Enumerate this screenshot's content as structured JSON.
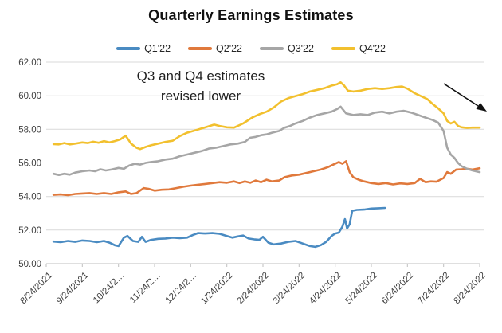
{
  "title": "Quarterly Earnings Estimates",
  "annotation": {
    "line1": "Q3 and Q4 estimates",
    "line2": "revised lower",
    "arrow_direction": "down-right"
  },
  "chart_data": {
    "type": "line",
    "title": "Quarterly Earnings Estimates",
    "xlabel": "",
    "ylabel": "",
    "x_axis": {
      "unit": "months since 8/24/2021",
      "range": [
        0,
        12
      ],
      "tick_labels": [
        "8/24/2021",
        "9/24/2021",
        "10/24/2…",
        "11/24/2…",
        "12/24/2…",
        "1/24/2022",
        "2/24/2022",
        "3/24/2022",
        "4/24/2022",
        "5/24/2022",
        "6/24/2022",
        "7/24/2022",
        "8/24/2022"
      ]
    },
    "y_axis": {
      "range": [
        50,
        62
      ],
      "tick_labels": [
        "62.00",
        "60.00",
        "58.00",
        "56.00",
        "54.00",
        "52.00",
        "50.00"
      ],
      "gridlines": true
    },
    "legend_position": "top",
    "colors": {
      "grid": "#D9D9D9",
      "axis": "#BFBFBF",
      "tick_text": "#404040",
      "annotation_arrow": "#111111"
    },
    "series": [
      {
        "name": "Q1'22",
        "color": "#4A8BC2",
        "points": [
          [
            0.2,
            51.32
          ],
          [
            0.4,
            51.28
          ],
          [
            0.6,
            51.35
          ],
          [
            0.8,
            51.3
          ],
          [
            1.0,
            51.38
          ],
          [
            1.2,
            51.35
          ],
          [
            1.4,
            51.28
          ],
          [
            1.6,
            51.35
          ],
          [
            1.75,
            51.25
          ],
          [
            1.9,
            51.1
          ],
          [
            2.0,
            51.05
          ],
          [
            2.15,
            51.55
          ],
          [
            2.25,
            51.65
          ],
          [
            2.4,
            51.35
          ],
          [
            2.55,
            51.3
          ],
          [
            2.65,
            51.6
          ],
          [
            2.75,
            51.3
          ],
          [
            2.9,
            51.42
          ],
          [
            3.1,
            51.48
          ],
          [
            3.3,
            51.5
          ],
          [
            3.5,
            51.55
          ],
          [
            3.7,
            51.52
          ],
          [
            3.9,
            51.55
          ],
          [
            4.05,
            51.7
          ],
          [
            4.2,
            51.82
          ],
          [
            4.4,
            51.8
          ],
          [
            4.6,
            51.82
          ],
          [
            4.8,
            51.78
          ],
          [
            5.0,
            51.65
          ],
          [
            5.15,
            51.55
          ],
          [
            5.3,
            51.62
          ],
          [
            5.45,
            51.68
          ],
          [
            5.6,
            51.5
          ],
          [
            5.75,
            51.45
          ],
          [
            5.9,
            51.42
          ],
          [
            6.0,
            51.6
          ],
          [
            6.15,
            51.25
          ],
          [
            6.3,
            51.15
          ],
          [
            6.5,
            51.2
          ],
          [
            6.7,
            51.3
          ],
          [
            6.9,
            51.35
          ],
          [
            7.1,
            51.2
          ],
          [
            7.3,
            51.05
          ],
          [
            7.45,
            51.0
          ],
          [
            7.6,
            51.1
          ],
          [
            7.75,
            51.3
          ],
          [
            7.9,
            51.65
          ],
          [
            8.0,
            51.8
          ],
          [
            8.1,
            51.85
          ],
          [
            8.2,
            52.2
          ],
          [
            8.27,
            52.65
          ],
          [
            8.33,
            52.1
          ],
          [
            8.4,
            52.35
          ],
          [
            8.47,
            53.15
          ],
          [
            8.6,
            53.2
          ],
          [
            8.8,
            53.22
          ],
          [
            9.0,
            53.28
          ],
          [
            9.2,
            53.3
          ],
          [
            9.38,
            53.32
          ]
        ]
      },
      {
        "name": "Q2'22",
        "color": "#E0793C",
        "points": [
          [
            0.2,
            54.1
          ],
          [
            0.4,
            54.12
          ],
          [
            0.6,
            54.08
          ],
          [
            0.8,
            54.15
          ],
          [
            1.0,
            54.18
          ],
          [
            1.2,
            54.2
          ],
          [
            1.4,
            54.15
          ],
          [
            1.6,
            54.2
          ],
          [
            1.8,
            54.15
          ],
          [
            2.0,
            54.25
          ],
          [
            2.2,
            54.3
          ],
          [
            2.35,
            54.15
          ],
          [
            2.5,
            54.2
          ],
          [
            2.7,
            54.5
          ],
          [
            2.85,
            54.45
          ],
          [
            3.0,
            54.35
          ],
          [
            3.2,
            54.4
          ],
          [
            3.4,
            54.42
          ],
          [
            3.6,
            54.5
          ],
          [
            3.8,
            54.58
          ],
          [
            4.0,
            54.65
          ],
          [
            4.2,
            54.7
          ],
          [
            4.4,
            54.75
          ],
          [
            4.6,
            54.8
          ],
          [
            4.8,
            54.85
          ],
          [
            5.0,
            54.82
          ],
          [
            5.2,
            54.9
          ],
          [
            5.35,
            54.8
          ],
          [
            5.5,
            54.9
          ],
          [
            5.65,
            54.82
          ],
          [
            5.8,
            54.95
          ],
          [
            5.95,
            54.85
          ],
          [
            6.1,
            55.0
          ],
          [
            6.25,
            54.9
          ],
          [
            6.45,
            54.95
          ],
          [
            6.6,
            55.15
          ],
          [
            6.8,
            55.25
          ],
          [
            7.0,
            55.3
          ],
          [
            7.2,
            55.4
          ],
          [
            7.4,
            55.5
          ],
          [
            7.6,
            55.6
          ],
          [
            7.8,
            55.75
          ],
          [
            7.95,
            55.9
          ],
          [
            8.1,
            56.05
          ],
          [
            8.2,
            55.95
          ],
          [
            8.3,
            56.1
          ],
          [
            8.4,
            55.45
          ],
          [
            8.5,
            55.15
          ],
          [
            8.65,
            55.0
          ],
          [
            8.8,
            54.9
          ],
          [
            9.0,
            54.8
          ],
          [
            9.2,
            54.75
          ],
          [
            9.4,
            54.8
          ],
          [
            9.6,
            54.72
          ],
          [
            9.8,
            54.78
          ],
          [
            10.0,
            54.75
          ],
          [
            10.2,
            54.8
          ],
          [
            10.35,
            55.05
          ],
          [
            10.5,
            54.85
          ],
          [
            10.65,
            54.9
          ],
          [
            10.8,
            54.88
          ],
          [
            11.0,
            55.1
          ],
          [
            11.1,
            55.45
          ],
          [
            11.2,
            55.35
          ],
          [
            11.35,
            55.6
          ],
          [
            11.5,
            55.62
          ],
          [
            11.65,
            55.65
          ],
          [
            11.8,
            55.6
          ],
          [
            12.0,
            55.68
          ]
        ]
      },
      {
        "name": "Q3'22",
        "color": "#A6A6A6",
        "points": [
          [
            0.2,
            55.35
          ],
          [
            0.35,
            55.28
          ],
          [
            0.5,
            55.35
          ],
          [
            0.65,
            55.3
          ],
          [
            0.8,
            55.42
          ],
          [
            1.0,
            55.5
          ],
          [
            1.2,
            55.55
          ],
          [
            1.35,
            55.5
          ],
          [
            1.5,
            55.62
          ],
          [
            1.65,
            55.55
          ],
          [
            1.8,
            55.6
          ],
          [
            2.0,
            55.7
          ],
          [
            2.15,
            55.65
          ],
          [
            2.3,
            55.85
          ],
          [
            2.45,
            55.95
          ],
          [
            2.6,
            55.9
          ],
          [
            2.75,
            56.0
          ],
          [
            2.9,
            56.05
          ],
          [
            3.1,
            56.1
          ],
          [
            3.3,
            56.2
          ],
          [
            3.5,
            56.25
          ],
          [
            3.7,
            56.4
          ],
          [
            3.9,
            56.5
          ],
          [
            4.1,
            56.6
          ],
          [
            4.3,
            56.7
          ],
          [
            4.5,
            56.85
          ],
          [
            4.7,
            56.9
          ],
          [
            4.9,
            57.0
          ],
          [
            5.1,
            57.1
          ],
          [
            5.3,
            57.15
          ],
          [
            5.5,
            57.25
          ],
          [
            5.65,
            57.5
          ],
          [
            5.8,
            57.55
          ],
          [
            5.95,
            57.65
          ],
          [
            6.1,
            57.7
          ],
          [
            6.25,
            57.8
          ],
          [
            6.45,
            57.9
          ],
          [
            6.6,
            58.1
          ],
          [
            6.75,
            58.2
          ],
          [
            6.9,
            58.35
          ],
          [
            7.1,
            58.5
          ],
          [
            7.3,
            58.7
          ],
          [
            7.5,
            58.85
          ],
          [
            7.7,
            58.95
          ],
          [
            7.9,
            59.05
          ],
          [
            8.05,
            59.2
          ],
          [
            8.15,
            59.35
          ],
          [
            8.3,
            58.95
          ],
          [
            8.5,
            58.85
          ],
          [
            8.7,
            58.9
          ],
          [
            8.9,
            58.85
          ],
          [
            9.1,
            59.0
          ],
          [
            9.3,
            59.05
          ],
          [
            9.5,
            58.95
          ],
          [
            9.7,
            59.05
          ],
          [
            9.9,
            59.1
          ],
          [
            10.1,
            59.0
          ],
          [
            10.3,
            58.85
          ],
          [
            10.5,
            58.7
          ],
          [
            10.7,
            58.55
          ],
          [
            10.85,
            58.4
          ],
          [
            11.0,
            57.9
          ],
          [
            11.1,
            56.9
          ],
          [
            11.2,
            56.5
          ],
          [
            11.3,
            56.3
          ],
          [
            11.4,
            56.0
          ],
          [
            11.5,
            55.8
          ],
          [
            11.65,
            55.65
          ],
          [
            11.8,
            55.55
          ],
          [
            12.0,
            55.45
          ]
        ]
      },
      {
        "name": "Q4'22",
        "color": "#F2C02E",
        "points": [
          [
            0.2,
            57.12
          ],
          [
            0.35,
            57.1
          ],
          [
            0.5,
            57.18
          ],
          [
            0.65,
            57.1
          ],
          [
            0.8,
            57.15
          ],
          [
            1.0,
            57.22
          ],
          [
            1.15,
            57.18
          ],
          [
            1.3,
            57.26
          ],
          [
            1.45,
            57.2
          ],
          [
            1.6,
            57.3
          ],
          [
            1.75,
            57.22
          ],
          [
            1.9,
            57.3
          ],
          [
            2.05,
            57.4
          ],
          [
            2.2,
            57.62
          ],
          [
            2.35,
            57.15
          ],
          [
            2.5,
            56.9
          ],
          [
            2.6,
            56.82
          ],
          [
            2.75,
            56.95
          ],
          [
            2.9,
            57.05
          ],
          [
            3.1,
            57.15
          ],
          [
            3.3,
            57.25
          ],
          [
            3.5,
            57.32
          ],
          [
            3.7,
            57.6
          ],
          [
            3.9,
            57.8
          ],
          [
            4.1,
            57.92
          ],
          [
            4.3,
            58.05
          ],
          [
            4.5,
            58.18
          ],
          [
            4.65,
            58.28
          ],
          [
            4.8,
            58.2
          ],
          [
            5.0,
            58.12
          ],
          [
            5.2,
            58.1
          ],
          [
            5.45,
            58.35
          ],
          [
            5.7,
            58.7
          ],
          [
            5.9,
            58.9
          ],
          [
            6.1,
            59.05
          ],
          [
            6.3,
            59.3
          ],
          [
            6.5,
            59.65
          ],
          [
            6.7,
            59.85
          ],
          [
            6.9,
            59.98
          ],
          [
            7.1,
            60.1
          ],
          [
            7.3,
            60.25
          ],
          [
            7.5,
            60.35
          ],
          [
            7.7,
            60.45
          ],
          [
            7.9,
            60.6
          ],
          [
            8.05,
            60.68
          ],
          [
            8.15,
            60.8
          ],
          [
            8.25,
            60.6
          ],
          [
            8.35,
            60.3
          ],
          [
            8.5,
            60.25
          ],
          [
            8.7,
            60.3
          ],
          [
            8.9,
            60.4
          ],
          [
            9.1,
            60.45
          ],
          [
            9.3,
            60.4
          ],
          [
            9.5,
            60.45
          ],
          [
            9.7,
            60.52
          ],
          [
            9.85,
            60.55
          ],
          [
            10.0,
            60.42
          ],
          [
            10.2,
            60.15
          ],
          [
            10.4,
            59.95
          ],
          [
            10.55,
            59.8
          ],
          [
            10.7,
            59.5
          ],
          [
            10.85,
            59.25
          ],
          [
            11.0,
            58.95
          ],
          [
            11.1,
            58.5
          ],
          [
            11.2,
            58.35
          ],
          [
            11.3,
            58.45
          ],
          [
            11.4,
            58.2
          ],
          [
            11.5,
            58.12
          ],
          [
            11.65,
            58.08
          ],
          [
            11.8,
            58.1
          ],
          [
            12.0,
            58.1
          ]
        ]
      }
    ]
  }
}
